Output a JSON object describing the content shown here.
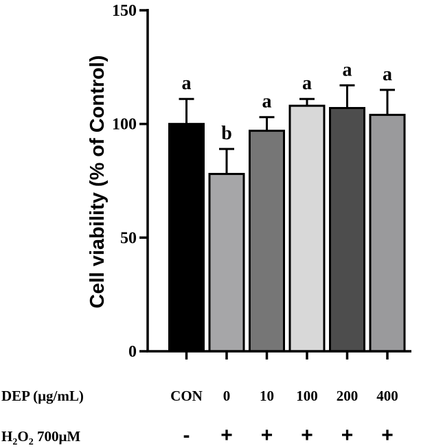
{
  "chart_data": {
    "type": "bar",
    "title": "",
    "ylabel": "Cell viability (% of Control)",
    "xlabel": "",
    "ylim": [
      0,
      150
    ],
    "yticks": [
      0,
      50,
      100,
      150
    ],
    "categories": [
      "CON",
      "0",
      "10",
      "100",
      "200",
      "400"
    ],
    "values": [
      100,
      78,
      97,
      108,
      107,
      104
    ],
    "errors": [
      11,
      11,
      6,
      3,
      10,
      11
    ],
    "significance": [
      "a",
      "b",
      "a",
      "a",
      "a",
      "a"
    ],
    "colors": [
      "#000000",
      "#a6a6a8",
      "#767676",
      "#d8d8d8",
      "#4d4d4d",
      "#9a9a9c"
    ],
    "row_labels": {
      "dep": "DEP (μg/mL)",
      "h2o2_prefix": "H",
      "h2o2_sub1": "2",
      "h2o2_mid": "O",
      "h2o2_sub2": "2",
      "h2o2_suffix": " 700μM"
    },
    "h2o2_treatment": [
      "-",
      "+",
      "+",
      "+",
      "+",
      "+"
    ]
  }
}
